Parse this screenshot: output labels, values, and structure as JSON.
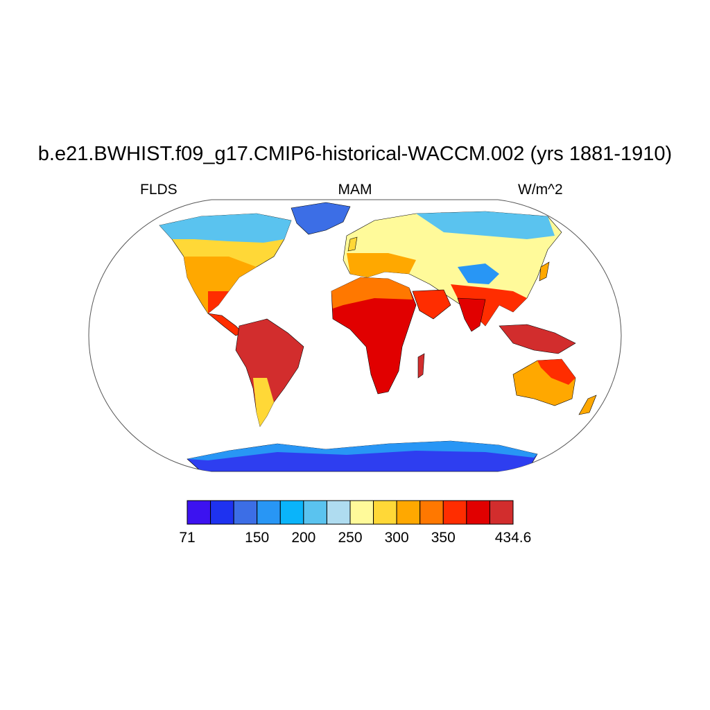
{
  "header": {
    "title": "b.e21.BWHIST.f09_g17.CMIP6-historical-WACCM.002 (yrs 1881-1910)",
    "left_label": "FLDS",
    "center_label": "MAM",
    "right_label": "W/m^2"
  },
  "colorbar": {
    "colors": [
      "#3c12f0",
      "#1e32f0",
      "#3c6ee6",
      "#2896f5",
      "#0ab4fa",
      "#5ac3ef",
      "#afdcf0",
      "#fffa9a",
      "#ffd837",
      "#ffa800",
      "#ff7800",
      "#ff2d00",
      "#e10000",
      "#d22d2d"
    ],
    "boundaries": [
      71,
      100,
      125,
      150,
      175,
      200,
      225,
      250,
      275,
      300,
      325,
      350,
      375,
      400,
      434.6
    ],
    "tick_labels": [
      {
        "value": 71,
        "label": "71"
      },
      {
        "value": 150,
        "label": "150"
      },
      {
        "value": 200,
        "label": "200"
      },
      {
        "value": 250,
        "label": "250"
      },
      {
        "value": 300,
        "label": "300"
      },
      {
        "value": 350,
        "label": "350"
      },
      {
        "value": 434.6,
        "label": "434.6"
      }
    ]
  },
  "map": {
    "projection": "robinson",
    "variable": "FLDS",
    "season": "MAM",
    "units": "W/m^2",
    "min_value": 71,
    "max_value": 434.6
  }
}
